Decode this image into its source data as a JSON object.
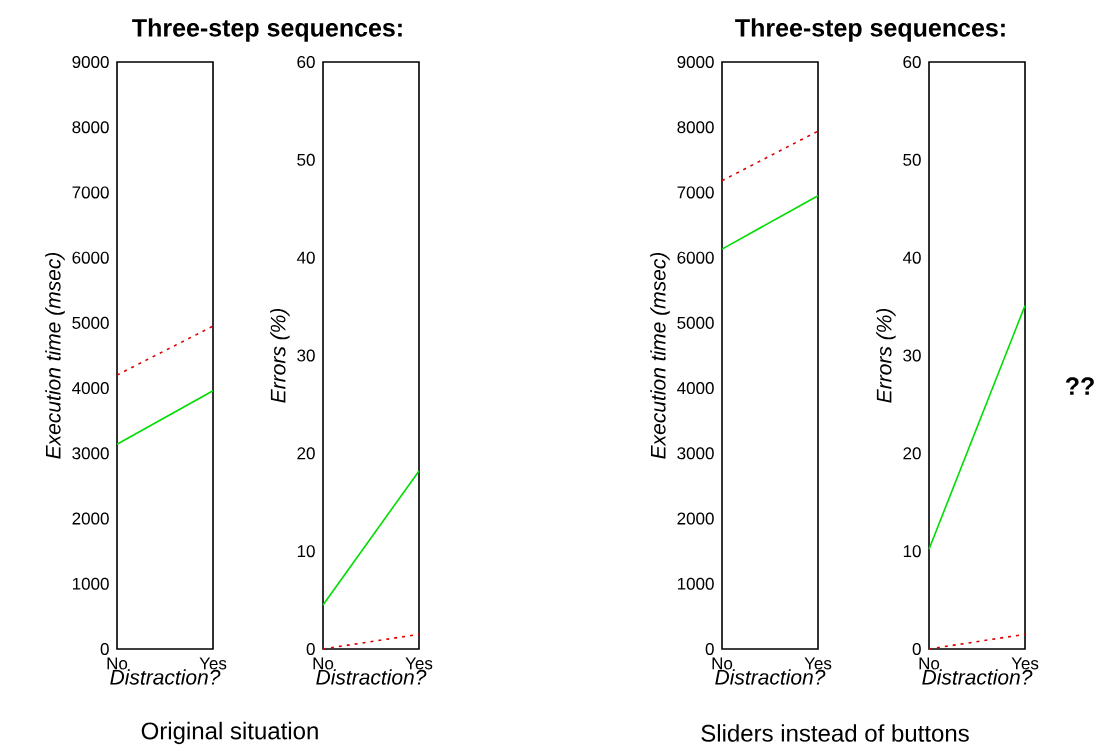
{
  "chart_data": [
    {
      "type": "line",
      "title": "Three-step sequences:",
      "categories": [
        "No",
        "Yes"
      ],
      "xlabel": "Distraction?",
      "ylabel": "Execution time (msec)",
      "ylim": [
        0,
        9000
      ],
      "yticks": [
        0,
        1000,
        2000,
        3000,
        4000,
        5000,
        6000,
        7000,
        8000,
        9000
      ],
      "annotations": [
        "Original situation"
      ],
      "series": [
        {
          "color": "#dd0000",
          "line_style": "dotted",
          "values": [
            4200,
            4950
          ]
        },
        {
          "color": "#00dd00",
          "line_style": "solid",
          "values": [
            3140,
            3960
          ]
        }
      ]
    },
    {
      "type": "line",
      "categories": [
        "No",
        "Yes"
      ],
      "xlabel": "Distraction?",
      "ylabel": "Errors (%)",
      "ylim": [
        0,
        60
      ],
      "yticks": [
        0,
        10,
        20,
        30,
        40,
        50,
        60
      ],
      "series": [
        {
          "color": "#dd0000",
          "line_style": "dotted",
          "values": [
            0,
            1.5
          ]
        },
        {
          "color": "#00dd00",
          "line_style": "solid",
          "values": [
            4.5,
            18.2
          ]
        }
      ]
    },
    {
      "type": "line",
      "title": "Three-step sequences:",
      "categories": [
        "No",
        "Yes"
      ],
      "xlabel": "Distraction?",
      "ylabel": "Execution time (msec)",
      "ylim": [
        0,
        9000
      ],
      "yticks": [
        0,
        1000,
        2000,
        3000,
        4000,
        5000,
        6000,
        7000,
        8000,
        9000
      ],
      "annotations": [
        "Sliders instead of buttons"
      ],
      "series": [
        {
          "color": "#dd0000",
          "line_style": "dotted",
          "values": [
            7180,
            7940
          ]
        },
        {
          "color": "#00dd00",
          "line_style": "solid",
          "values": [
            6130,
            6950
          ]
        }
      ]
    },
    {
      "type": "line",
      "categories": [
        "No",
        "Yes"
      ],
      "xlabel": "Distraction?",
      "ylabel": "Errors (%)",
      "ylim": [
        0,
        60
      ],
      "yticks": [
        0,
        10,
        20,
        30,
        40,
        50,
        60
      ],
      "annotations": [
        "??"
      ],
      "series": [
        {
          "color": "#dd0000",
          "line_style": "dotted",
          "values": [
            0,
            1.5
          ]
        },
        {
          "color": "#00dd00",
          "line_style": "solid",
          "values": [
            10.2,
            35.1
          ]
        }
      ]
    }
  ]
}
